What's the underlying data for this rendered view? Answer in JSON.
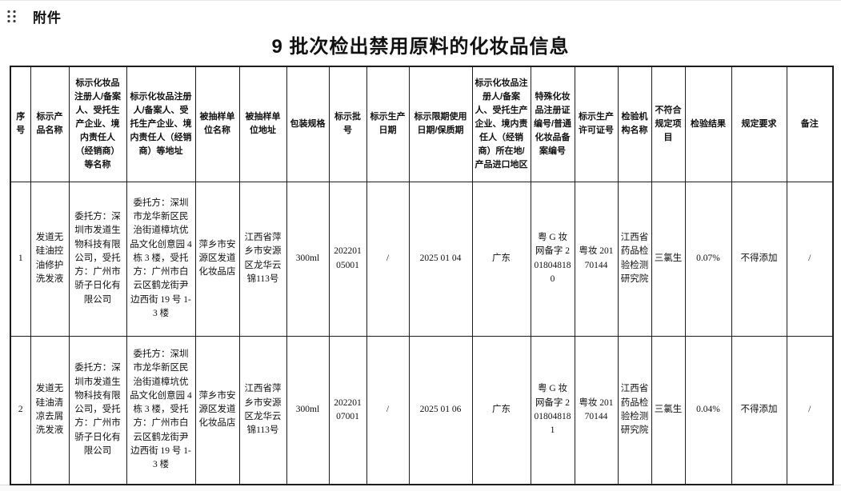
{
  "page": {
    "attachment_label": "附件",
    "title": "9 批次检出禁用原料的化妆品信息"
  },
  "icons": {
    "drag_handle": "drag-handle-dots"
  },
  "colors": {
    "text": "#111111",
    "table_border": "#1d1d1d",
    "background": "#ffffff"
  },
  "table": {
    "headers": [
      "序号",
      "标示产品名称",
      "标示化妆品注册人/备案人、受托生产企业、境内责任人（经销商）等名称",
      "标示化妆品注册人/备案人、受托生产企业、境内责任人（经销商）等地址",
      "被抽样单位名称",
      "被抽样单位地址",
      "包装规格",
      "标示批号",
      "标示生产日期",
      "标示限期使用日期/保质期",
      "标示化妆品注册人/备案人、受托生产企业、境内责任人（经销商）所在地/产品进口地区",
      "特殊化妆品注册证编号/普通化妆品备案编号",
      "标示生产许可证号",
      "检验机构名称",
      "不符合规定项目",
      "检验结果",
      "规定要求",
      "备注"
    ],
    "rows": [
      [
        "1",
        "发道无硅油控油修护洗发液",
        "委托方：深圳市发道生物科技有限公司，受托方：广州市骄子日化有限公司",
        "委托方：深圳市龙华新区民治街道樟坑优品文化创意园 4 栋 3 楼，受托方：广州市白云区鹤龙街尹边西街 19 号 1-3 楼",
        "萍乡市安源区发道化妆品店",
        "江西省萍乡市安源区龙华云锦113号",
        "300ml",
        "20220105001",
        "/",
        "2025 01 04",
        "广东",
        "粤 G 妆网备字 2018048180",
        "粤妆 20170144",
        "江西省药品检验检测研究院",
        "三氯生",
        "0.07%",
        "不得添加",
        "/"
      ],
      [
        "2",
        "发道无硅油清凉去屑洗发液",
        "委托方：深圳市发道生物科技有限公司，受托方：广州市骄子日化有限公司",
        "委托方：深圳市龙华新区民治街道樟坑优品文化创意园 4 栋 3 楼，受托方：广州市白云区鹤龙街尹边西街 19 号 1-3 楼",
        "萍乡市安源区发道化妆品店",
        "江西省萍乡市安源区龙华云锦113号",
        "300ml",
        "20220107001",
        "/",
        "2025 01 06",
        "广东",
        "粤 G 妆网备字 2018048181",
        "粤妆 20170144",
        "江西省药品检验检测研究院",
        "三氯生",
        "0.04%",
        "不得添加",
        "/"
      ]
    ]
  }
}
